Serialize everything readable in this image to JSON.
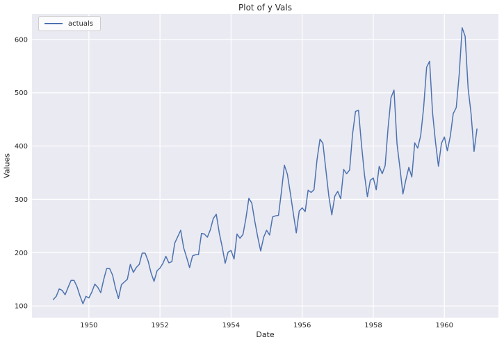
{
  "chart_data": {
    "type": "line",
    "title": "Plot of y Vals",
    "xlabel": "Date",
    "ylabel": "Values",
    "grid": true,
    "legend_position": "upper left",
    "xticks": [
      1950,
      1952,
      1954,
      1956,
      1958,
      1960
    ],
    "yticks": [
      100,
      200,
      300,
      400,
      500,
      600
    ],
    "xlim": [
      1948.4,
      1961.52
    ],
    "ylim": [
      78,
      648
    ],
    "x_start_year": 1949,
    "points_per_year": 12,
    "series": [
      {
        "name": "actuals",
        "color": "#4C72B0",
        "values": [
          112,
          118,
          132,
          129,
          121,
          135,
          148,
          148,
          136,
          119,
          104,
          118,
          115,
          126,
          141,
          135,
          125,
          149,
          170,
          170,
          158,
          133,
          114,
          140,
          145,
          150,
          178,
          163,
          172,
          178,
          199,
          199,
          184,
          162,
          146,
          166,
          171,
          180,
          193,
          181,
          183,
          218,
          230,
          242,
          209,
          191,
          172,
          194,
          196,
          196,
          236,
          235,
          229,
          243,
          264,
          272,
          237,
          211,
          180,
          201,
          204,
          188,
          235,
          227,
          234,
          264,
          302,
          293,
          259,
          229,
          203,
          229,
          242,
          233,
          267,
          269,
          270,
          315,
          364,
          347,
          312,
          274,
          237,
          278,
          284,
          277,
          317,
          313,
          318,
          374,
          413,
          405,
          355,
          306,
          271,
          306,
          315,
          301,
          356,
          348,
          355,
          422,
          465,
          467,
          404,
          347,
          305,
          336,
          340,
          318,
          362,
          348,
          363,
          435,
          491,
          505,
          404,
          359,
          310,
          337,
          360,
          342,
          406,
          396,
          420,
          472,
          548,
          559,
          463,
          407,
          362,
          405,
          417,
          391,
          419,
          461,
          472,
          535,
          622,
          606,
          508,
          461,
          390,
          432
        ]
      }
    ],
    "style": {
      "figure_bg": "#FFFFFF",
      "plot_bg": "#EAEAF2",
      "grid_color": "#FFFFFF",
      "text_color": "#262626",
      "line_color": "#4C72B0",
      "legend_border": "#CCCCCC"
    }
  }
}
